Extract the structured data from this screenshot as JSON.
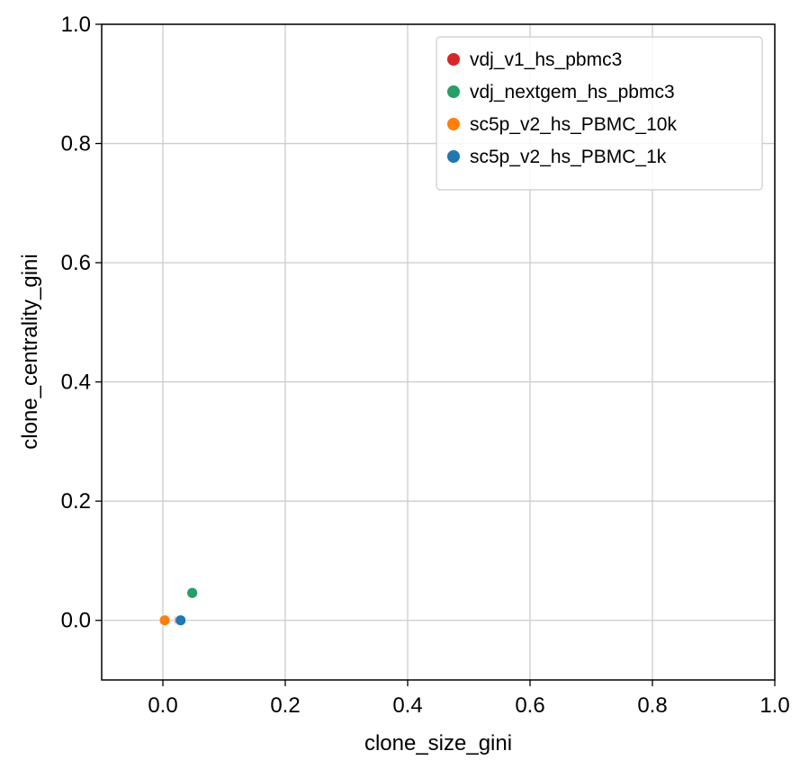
{
  "chart_data": {
    "type": "scatter",
    "title": "",
    "xlabel": "clone_size_gini",
    "ylabel": "clone_centrality_gini",
    "xlim": [
      -0.1,
      1.0
    ],
    "ylim": [
      -0.1,
      1.0
    ],
    "xticks": [
      0.0,
      0.2,
      0.4,
      0.6,
      0.8,
      1.0
    ],
    "yticks": [
      0.0,
      0.2,
      0.4,
      0.6,
      0.8,
      1.0
    ],
    "xtick_labels": [
      "0.0",
      "0.2",
      "0.4",
      "0.6",
      "0.8",
      "1.0"
    ],
    "ytick_labels": [
      "0.0",
      "0.2",
      "0.4",
      "0.6",
      "0.8",
      "1.0"
    ],
    "grid": true,
    "legend_position": "top-right",
    "series": [
      {
        "name": "vdj_v1_hs_pbmc3",
        "color": "#d62728",
        "points": [
          {
            "x": 0.027,
            "y": 0.0
          }
        ]
      },
      {
        "name": "vdj_nextgem_hs_pbmc3",
        "color": "#279e68",
        "points": [
          {
            "x": 0.048,
            "y": 0.046
          }
        ]
      },
      {
        "name": "sc5p_v2_hs_PBMC_10k",
        "color": "#ff7f0e",
        "points": [
          {
            "x": 0.003,
            "y": 0.0
          }
        ]
      },
      {
        "name": "sc5p_v2_hs_PBMC_1k",
        "color": "#1f77b4",
        "points": [
          {
            "x": 0.029,
            "y": 0.0
          }
        ]
      }
    ]
  }
}
